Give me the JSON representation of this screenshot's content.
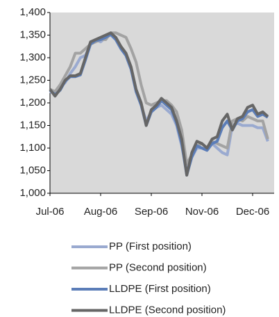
{
  "chart_data": {
    "type": "line",
    "categories": [
      "Jul-06",
      null,
      null,
      null,
      null,
      null,
      null,
      null,
      null,
      null,
      "Aug-06",
      null,
      null,
      null,
      null,
      null,
      null,
      null,
      null,
      null,
      "Sep-06",
      null,
      null,
      null,
      null,
      null,
      null,
      null,
      null,
      null,
      "Nov-06",
      null,
      null,
      null,
      null,
      null,
      null,
      null,
      null,
      null,
      "Dec-06",
      null,
      null,
      null
    ],
    "ylim": [
      1000,
      1400
    ],
    "yticks": [
      {
        "value": 1000,
        "label": "1,000"
      },
      {
        "value": 1050,
        "label": "1,050"
      },
      {
        "value": 1100,
        "label": "1,100"
      },
      {
        "value": 1150,
        "label": "1,150"
      },
      {
        "value": 1200,
        "label": "1,200"
      },
      {
        "value": 1250,
        "label": "1,250"
      },
      {
        "value": 1300,
        "label": "1,300"
      },
      {
        "value": 1350,
        "label": "1,350"
      },
      {
        "value": 1400,
        "label": "1,400"
      }
    ],
    "grid": false,
    "series": [
      {
        "name": "PP (First position)",
        "color": "#9aaad0",
        "values": [
          1225,
          1220,
          1235,
          1245,
          1265,
          1280,
          1300,
          1305,
          1330,
          1340,
          1335,
          1345,
          1350,
          1340,
          1320,
          1305,
          1275,
          1225,
          1195,
          1160,
          1180,
          1190,
          1195,
          1185,
          1175,
          1150,
          1105,
          1050,
          1080,
          1100,
          1100,
          1095,
          1110,
          1100,
          1090,
          1085,
          1150,
          1155,
          1150,
          1150,
          1150,
          1145,
          1145,
          1115
        ]
      },
      {
        "name": "PP (Second position)",
        "color": "#a3a3a3",
        "values": [
          1230,
          1225,
          1240,
          1260,
          1280,
          1310,
          1310,
          1320,
          1330,
          1335,
          1340,
          1340,
          1355,
          1355,
          1350,
          1345,
          1320,
          1290,
          1240,
          1200,
          1195,
          1200,
          1205,
          1205,
          1195,
          1180,
          1140,
          1065,
          1085,
          1105,
          1110,
          1100,
          1115,
          1110,
          1105,
          1100,
          1160,
          1165,
          1160,
          1170,
          1165,
          1160,
          1160,
          1120
        ]
      },
      {
        "name": "LLDPE (First position)",
        "color": "#5b7db8",
        "values": [
          1228,
          1218,
          1228,
          1248,
          1258,
          1258,
          1262,
          1295,
          1330,
          1338,
          1340,
          1345,
          1352,
          1340,
          1320,
          1305,
          1275,
          1225,
          1195,
          1150,
          1180,
          1190,
          1205,
          1195,
          1185,
          1155,
          1110,
          1040,
          1080,
          1105,
          1100,
          1095,
          1110,
          1115,
          1145,
          1160,
          1140,
          1160,
          1165,
          1180,
          1185,
          1170,
          1175,
          1168
        ]
      },
      {
        "name": "LLDPE (Second position)",
        "color": "#666666",
        "values": [
          1230,
          1215,
          1230,
          1250,
          1260,
          1260,
          1265,
          1300,
          1335,
          1340,
          1345,
          1350,
          1355,
          1345,
          1325,
          1310,
          1280,
          1230,
          1200,
          1150,
          1185,
          1195,
          1210,
          1200,
          1190,
          1160,
          1120,
          1040,
          1090,
          1115,
          1110,
          1100,
          1120,
          1125,
          1160,
          1175,
          1140,
          1165,
          1170,
          1190,
          1195,
          1175,
          1180,
          1170
        ]
      }
    ]
  }
}
